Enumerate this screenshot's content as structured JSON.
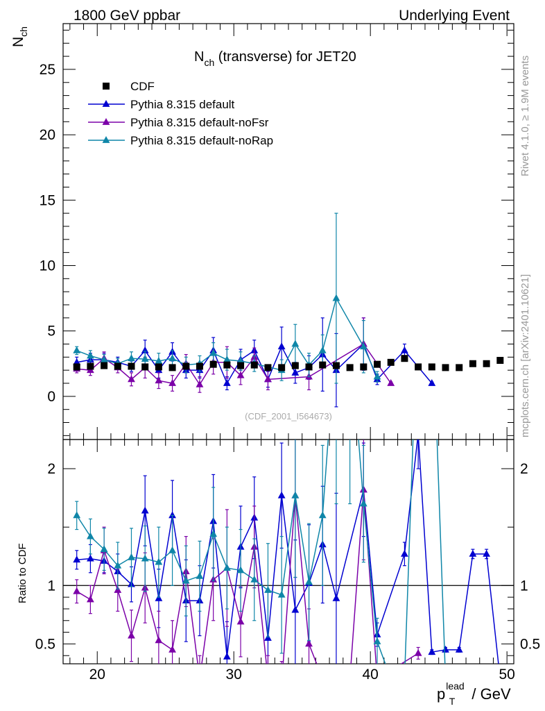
{
  "header": {
    "left": "1800 GeV ppbar",
    "right": "Underlying Event"
  },
  "side_text": {
    "top": "Rivet 4.1.0, ≥ 1.9M events",
    "bottom": "mcplots.cern.ch [arXiv:2401.10621]"
  },
  "watermark": "(CDF_2001_I564673)",
  "chart_data": {
    "type": "scatter",
    "title_main": "N",
    "title_sub": "ch",
    "title_rest": " (transverse) for JET20",
    "ylabel_main": "N",
    "ylabel_sub": "ch",
    "ratio_ylabel": "Ratio to CDF",
    "xlabel_p": "p",
    "xlabel_sub": "T",
    "xlabel_sup": "lead",
    "xlabel_rest": " / GeV",
    "xlim": [
      17.5,
      50.5
    ],
    "ylim": [
      -3.3,
      28.5
    ],
    "ratio_ylim": [
      0.33,
      2.25
    ],
    "x_ticks": [
      20,
      30,
      40,
      50
    ],
    "x_tick_labels": [
      "20",
      "30",
      "40",
      "50"
    ],
    "y_ticks": [
      0,
      5,
      10,
      15,
      20,
      25
    ],
    "y_tick_labels": [
      "0",
      "5",
      "10",
      "15",
      "20",
      "25"
    ],
    "ratio_ticks": [
      0.5,
      1,
      2
    ],
    "ratio_tick_labels": [
      "0.5",
      "1",
      "2"
    ],
    "legend": [
      "CDF",
      "Pythia 8.315 default",
      "Pythia 8.315 default-noFsr",
      "Pythia 8.315 default-noRap"
    ],
    "data": {
      "name": "CDF",
      "x": [
        18.5,
        19.5,
        20.5,
        21.5,
        22.5,
        23.5,
        24.5,
        25.5,
        26.5,
        27.5,
        28.5,
        29.5,
        30.5,
        31.5,
        32.5,
        33.5,
        34.5,
        35.5,
        36.5,
        37.5,
        38.5,
        39.5,
        40.5,
        41.5,
        42.5,
        43.5,
        44.5,
        45.5,
        46.5,
        47.5,
        48.5,
        49.5
      ],
      "y": [
        2.25,
        2.3,
        2.35,
        2.3,
        2.3,
        2.25,
        2.25,
        2.2,
        2.3,
        2.3,
        2.45,
        2.4,
        2.35,
        2.4,
        2.2,
        2.2,
        2.35,
        2.25,
        2.4,
        2.35,
        2.2,
        2.25,
        2.45,
        2.6,
        2.9,
        2.25,
        2.25,
        2.2,
        2.2,
        2.5,
        2.5,
        2.75
      ]
    },
    "series": [
      {
        "name": "Pythia 8.315 default",
        "color": "#0000d0",
        "x": [
          18.5,
          19.5,
          20.5,
          21.5,
          22.5,
          23.5,
          24.5,
          25.5,
          26.5,
          27.5,
          28.5,
          29.5,
          30.5,
          31.5,
          32.5,
          33.5,
          34.5,
          35.5,
          36.5,
          37.5,
          39.5,
          40.5,
          42.5,
          44.5
        ],
        "y": [
          2.6,
          2.8,
          2.8,
          2.6,
          2.3,
          3.5,
          2.0,
          3.4,
          2.0,
          2.0,
          3.5,
          1.0,
          2.8,
          3.5,
          1.3,
          3.8,
          1.8,
          2.2,
          3.2,
          2.0,
          4.0,
          1.3,
          3.5,
          1.0
        ],
        "err": [
          0.4,
          0.5,
          0.5,
          0.4,
          0.4,
          0.8,
          0.6,
          0.7,
          0.6,
          0.6,
          1.0,
          0.5,
          0.8,
          0.8,
          0.6,
          1.5,
          0.8,
          0.9,
          2.8,
          2.8,
          2.0,
          0.4,
          0.5,
          0.1
        ],
        "ratio_x": [
          18.5,
          19.5,
          20.5,
          21.5,
          22.5,
          23.5,
          24.5,
          25.5,
          26.5,
          27.5,
          28.5,
          29.5,
          30.5,
          31.5,
          32.5,
          33.5,
          34.5,
          35.5,
          36.5,
          37.5,
          39.5,
          40.5,
          42.5,
          43.5,
          44.5,
          45.5,
          46.5,
          47.5,
          48.5,
          49.5
        ],
        "ratio_y": [
          1.22,
          1.23,
          1.21,
          1.12,
          1.01,
          1.64,
          0.89,
          1.6,
          0.87,
          0.87,
          1.55,
          0.39,
          1.33,
          1.58,
          0.55,
          1.77,
          0.79,
          1.02,
          1.35,
          0.89,
          1.82,
          0.58,
          1.27,
          2.3,
          0.43,
          0.45,
          0.45,
          1.27,
          1.27,
          0.2
        ],
        "ratio_err": [
          0.08,
          0.12,
          0.1,
          0.15,
          0.15,
          0.3,
          0.25,
          0.3,
          0.35,
          0.3,
          0.4,
          0.3,
          0.35,
          0.35,
          0.4,
          0.45,
          0.6,
          0.5,
          0.5,
          0.9,
          0.4,
          0.1,
          0.1,
          0.3,
          0.02,
          0.02,
          0.02,
          0.04,
          0.04,
          0.05
        ]
      },
      {
        "name": "Pythia 8.315 default-noFsr",
        "color": "#7b00a8",
        "x": [
          18.5,
          19.5,
          20.5,
          21.5,
          22.5,
          23.5,
          24.5,
          25.5,
          26.5,
          27.5,
          28.5,
          29.5,
          30.5,
          31.5,
          32.5,
          35.5,
          39.5,
          41.5
        ],
        "y": [
          2.1,
          2.0,
          2.9,
          2.2,
          1.3,
          2.2,
          1.2,
          1.0,
          2.5,
          0.9,
          2.6,
          2.6,
          1.6,
          3.0,
          1.3,
          1.5,
          4.0,
          1.0
        ],
        "err": [
          0.3,
          0.4,
          0.5,
          0.4,
          0.5,
          0.8,
          0.6,
          0.6,
          0.7,
          0.6,
          0.9,
          1.2,
          0.7,
          0.7,
          0.8,
          1.0,
          2.0,
          0.1
        ],
        "ratio_x": [
          18.5,
          19.5,
          20.5,
          21.5,
          22.5,
          23.5,
          24.5,
          25.5,
          26.5,
          27.5,
          28.5,
          29.5,
          30.5,
          31.5,
          32.5,
          33.5,
          34.5,
          35.5,
          36.5,
          37.5,
          38.5,
          39.5,
          40.5,
          43.5
        ],
        "ratio_y": [
          0.95,
          0.88,
          1.3,
          0.96,
          0.57,
          0.98,
          0.53,
          0.45,
          1.12,
          0.2,
          1.05,
          1.15,
          0.69,
          1.33,
          0.2,
          0.15,
          1.77,
          0.5,
          0.2,
          0.2,
          0.2,
          1.82,
          0.2,
          0.42
        ],
        "ratio_err": [
          0.1,
          0.12,
          0.2,
          0.18,
          0.22,
          0.3,
          0.25,
          0.25,
          0.3,
          0.2,
          0.35,
          0.5,
          0.3,
          0.35,
          0.2,
          0.2,
          0.7,
          0.3,
          0.1,
          0.1,
          0.1,
          0.6,
          0.1,
          0.05
        ]
      },
      {
        "name": "Pythia 8.315 default-noRap",
        "color": "#0f86a8",
        "x": [
          18.5,
          19.5,
          20.5,
          21.5,
          22.5,
          23.5,
          24.5,
          25.5,
          26.5,
          27.5,
          28.5,
          29.5,
          30.5,
          31.5,
          33.5,
          34.5,
          35.5,
          36.5,
          37.5,
          39.5,
          40.5
        ],
        "y": [
          3.5,
          3.1,
          2.8,
          2.5,
          2.9,
          2.85,
          2.7,
          2.9,
          2.4,
          2.5,
          3.3,
          2.8,
          2.7,
          2.5,
          2.0,
          4.0,
          2.4,
          3.5,
          7.5,
          3.8,
          1.5
        ],
        "err": [
          0.3,
          0.4,
          0.4,
          0.4,
          0.5,
          0.6,
          0.6,
          0.6,
          0.6,
          0.6,
          0.8,
          0.8,
          0.7,
          0.6,
          0.8,
          1.5,
          0.9,
          1.2,
          6.5,
          2.0,
          0.4
        ],
        "ratio_x": [
          18.5,
          19.5,
          20.5,
          21.5,
          22.5,
          23.5,
          24.5,
          25.5,
          26.5,
          27.5,
          28.5,
          29.5,
          30.5,
          31.5,
          32.5,
          33.5,
          34.5,
          35.5,
          36.5,
          37.5,
          38.5,
          39.5,
          40.5,
          41.5,
          42.5,
          43.5,
          44.5,
          45.5
        ],
        "ratio_y": [
          1.6,
          1.42,
          1.31,
          1.17,
          1.24,
          1.23,
          1.2,
          1.3,
          1.04,
          1.08,
          1.44,
          1.15,
          1.13,
          1.05,
          0.96,
          0.92,
          1.77,
          1.03,
          1.6,
          3.2,
          3.2,
          1.7,
          0.52,
          0.2,
          0.2,
          3.5,
          3.5,
          0.2
        ],
        "ratio_err": [
          0.12,
          0.15,
          0.18,
          0.2,
          0.25,
          0.28,
          0.3,
          0.3,
          0.3,
          0.3,
          0.4,
          0.35,
          0.35,
          0.35,
          0.4,
          0.5,
          0.7,
          0.5,
          0.6,
          1.5,
          1.5,
          0.5,
          0.2,
          0.1,
          0.1,
          1.0,
          1.0,
          0.1
        ]
      }
    ]
  }
}
